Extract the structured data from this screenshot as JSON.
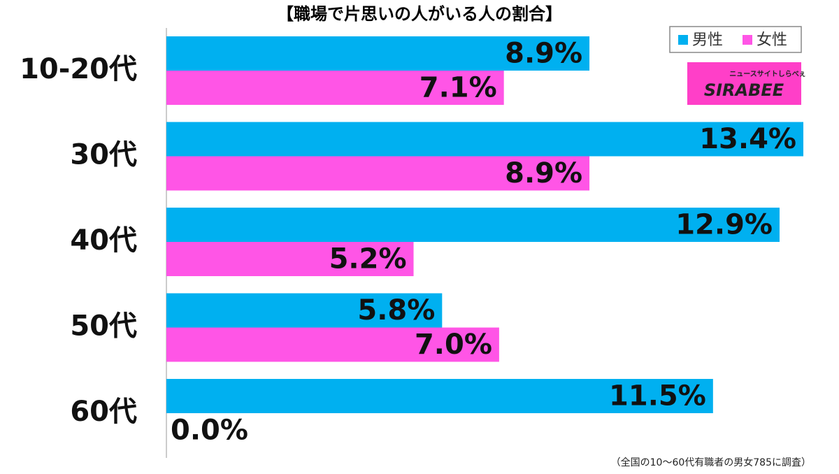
{
  "chart_data": {
    "type": "bar",
    "orientation": "horizontal",
    "title": "【職場で片思いの人がいる人の割合】",
    "categories": [
      "10-20代",
      "30代",
      "40代",
      "50代",
      "60代"
    ],
    "series": [
      {
        "name": "男性",
        "color": "#00b0f0",
        "values": [
          8.9,
          13.4,
          12.9,
          5.8,
          11.5
        ],
        "value_labels": [
          "8.9%",
          "13.4%",
          "12.9%",
          "5.8%",
          "11.5%"
        ]
      },
      {
        "name": "女性",
        "color": "#ff55e6",
        "values": [
          7.1,
          8.9,
          5.2,
          7.0,
          0.0
        ],
        "value_labels": [
          "7.1%",
          "8.9%",
          "5.2%",
          "7.0%",
          "0.0%"
        ]
      }
    ],
    "legend": "top-right",
    "note": "（全国の10〜60代有職者の男女785に調査）"
  },
  "logo": {
    "tagline": "ニュースサイトしらべぇ",
    "name": "SIRABEE"
  }
}
